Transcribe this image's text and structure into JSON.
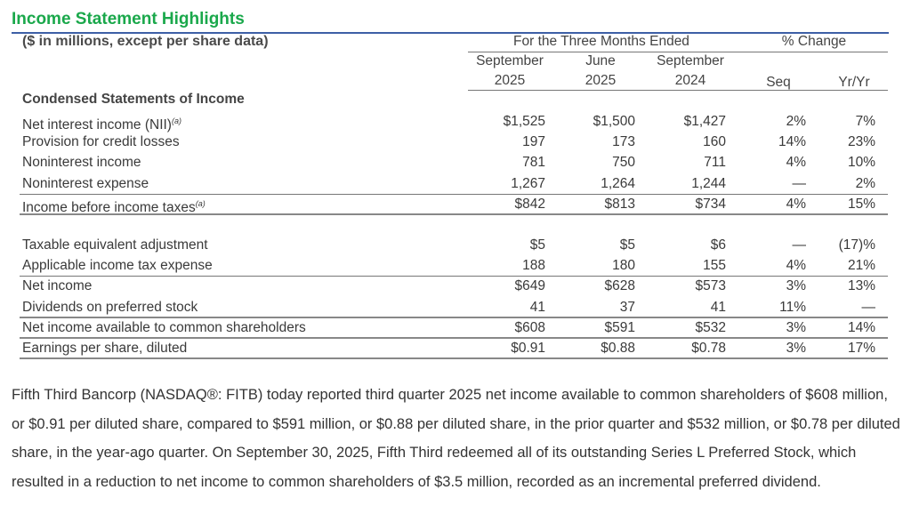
{
  "title": "Income Statement Highlights",
  "subtitle": "($ in millions, except per share data)",
  "header": {
    "period_group": "For the Three Months Ended",
    "change_group": "% Change",
    "columns": [
      {
        "line1": "September",
        "line2": "2025"
      },
      {
        "line1": "June",
        "line2": "2025"
      },
      {
        "line1": "September",
        "line2": "2024"
      },
      {
        "line1": "",
        "line2": "Seq"
      },
      {
        "line1": "",
        "line2": "Yr/Yr"
      }
    ]
  },
  "section_title": "Condensed Statements of Income",
  "footnote_marker": "(a)",
  "rows": [
    {
      "label": "Net interest income (NII)",
      "note": "(a)",
      "values": [
        "$1,525",
        "$1,500",
        "$1,427",
        "2%",
        "7%"
      ]
    },
    {
      "label": "Provision for credit losses",
      "note": "",
      "values": [
        "197",
        "173",
        "160",
        "14%",
        "23%"
      ]
    },
    {
      "label": "Noninterest income",
      "note": "",
      "values": [
        "781",
        "750",
        "711",
        "4%",
        "10%"
      ]
    },
    {
      "label": "Noninterest expense",
      "note": "",
      "values": [
        "1,267",
        "1,264",
        "1,244",
        "—",
        "2%"
      ]
    },
    {
      "label": "Income before income taxes",
      "note": "(a)",
      "values": [
        "$842",
        "$813",
        "$734",
        "4%",
        "15%"
      ]
    },
    {
      "label": "Taxable equivalent adjustment",
      "note": "",
      "values": [
        "$5",
        "$5",
        "$6",
        "—",
        "(17)%"
      ]
    },
    {
      "label": "Applicable income tax expense",
      "note": "",
      "values": [
        "188",
        "180",
        "155",
        "4%",
        "21%"
      ]
    },
    {
      "label": "Net income",
      "note": "",
      "values": [
        "$649",
        "$628",
        "$573",
        "3%",
        "13%"
      ]
    },
    {
      "label": "Dividends on preferred stock",
      "note": "",
      "values": [
        "41",
        "37",
        "41",
        "11%",
        "—"
      ]
    },
    {
      "label": "Net income available to common shareholders",
      "note": "",
      "values": [
        "$608",
        "$591",
        "$532",
        "3%",
        "14%"
      ]
    },
    {
      "label": "Earnings per share, diluted",
      "note": "",
      "values": [
        "$0.91",
        "$0.88",
        "$0.78",
        "3%",
        "17%"
      ]
    }
  ],
  "paragraph": "Fifth Third Bancorp (NASDAQ®: FITB) today reported third quarter 2025 net income available to common shareholders of $608 million, or $0.91 per diluted share, compared to $591 million, or $0.88 per diluted share, in the prior quarter and $532 million, or $0.78 per diluted share, in the year-ago quarter. On September 30, 2025, Fifth Third redeemed all of its outstanding Series L Preferred Stock, which resulted in a reduction to net income to common shareholders of $3.5 million, recorded as an incremental preferred dividend.",
  "colors": {
    "title": "#1aa84b",
    "rule": "#3d5fa6",
    "text": "#3a3a3a"
  }
}
